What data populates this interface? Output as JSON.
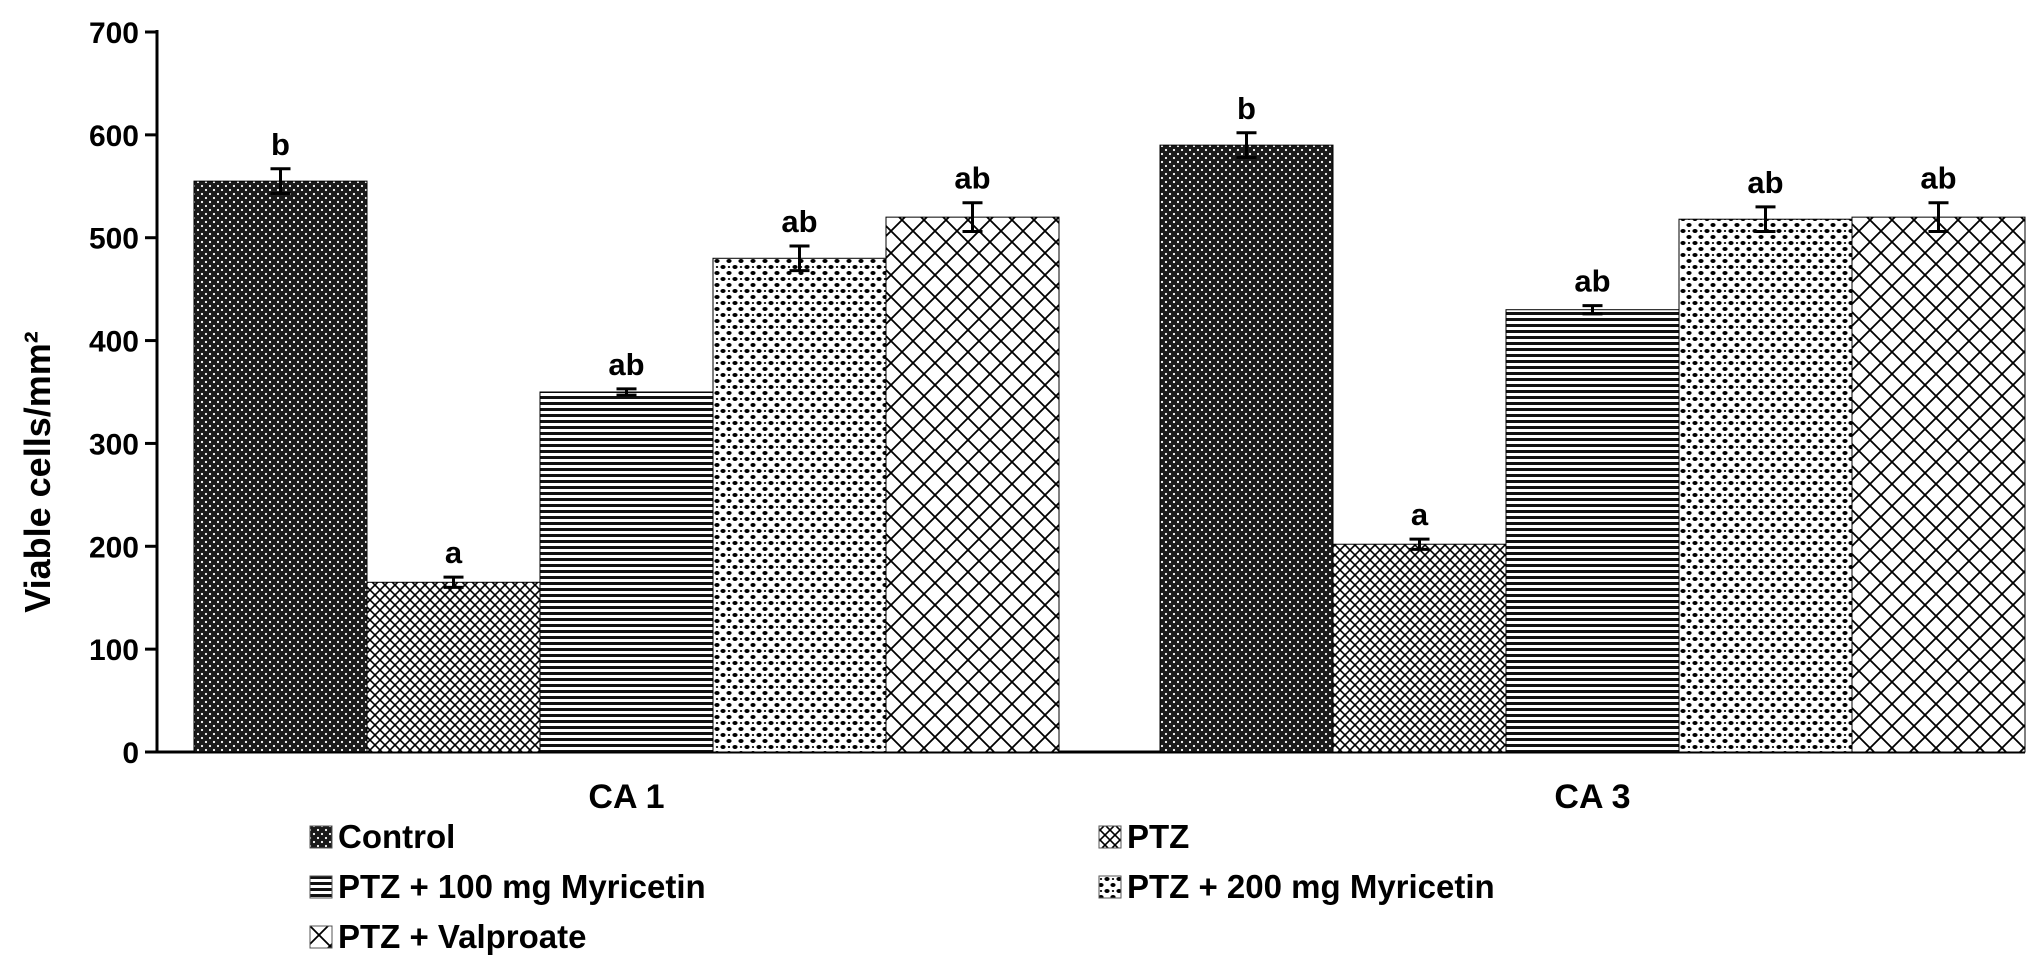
{
  "chart_data": {
    "type": "bar",
    "ylabel": "Viable cells/mm²",
    "xlabel": "",
    "ylim": [
      0,
      700
    ],
    "yticks": [
      0,
      100,
      200,
      300,
      400,
      500,
      600,
      700
    ],
    "categories": [
      "CA 1",
      "CA 3"
    ],
    "grid": false,
    "legend_position": "bottom",
    "series": [
      {
        "name": "Control",
        "values": [
          555,
          590
        ],
        "errors": [
          12,
          12
        ],
        "labels": [
          "b",
          "b"
        ],
        "pattern": "dense-dark"
      },
      {
        "name": "PTZ",
        "values": [
          165,
          202
        ],
        "errors": [
          5,
          5
        ],
        "labels": [
          "a",
          "a"
        ],
        "pattern": "fine-cross"
      },
      {
        "name": "PTZ + 100 mg Myricetin",
        "values": [
          350,
          430
        ],
        "errors": [
          3,
          4
        ],
        "labels": [
          "ab",
          "ab"
        ],
        "pattern": "horizontal"
      },
      {
        "name": "PTZ + 200 mg Myricetin",
        "values": [
          480,
          518
        ],
        "errors": [
          12,
          12
        ],
        "labels": [
          "ab",
          "ab"
        ],
        "pattern": "dots"
      },
      {
        "name": "PTZ + Valproate",
        "values": [
          520,
          520
        ],
        "errors": [
          14,
          14
        ],
        "labels": [
          "ab",
          "ab"
        ],
        "pattern": "crosshatch"
      }
    ]
  }
}
